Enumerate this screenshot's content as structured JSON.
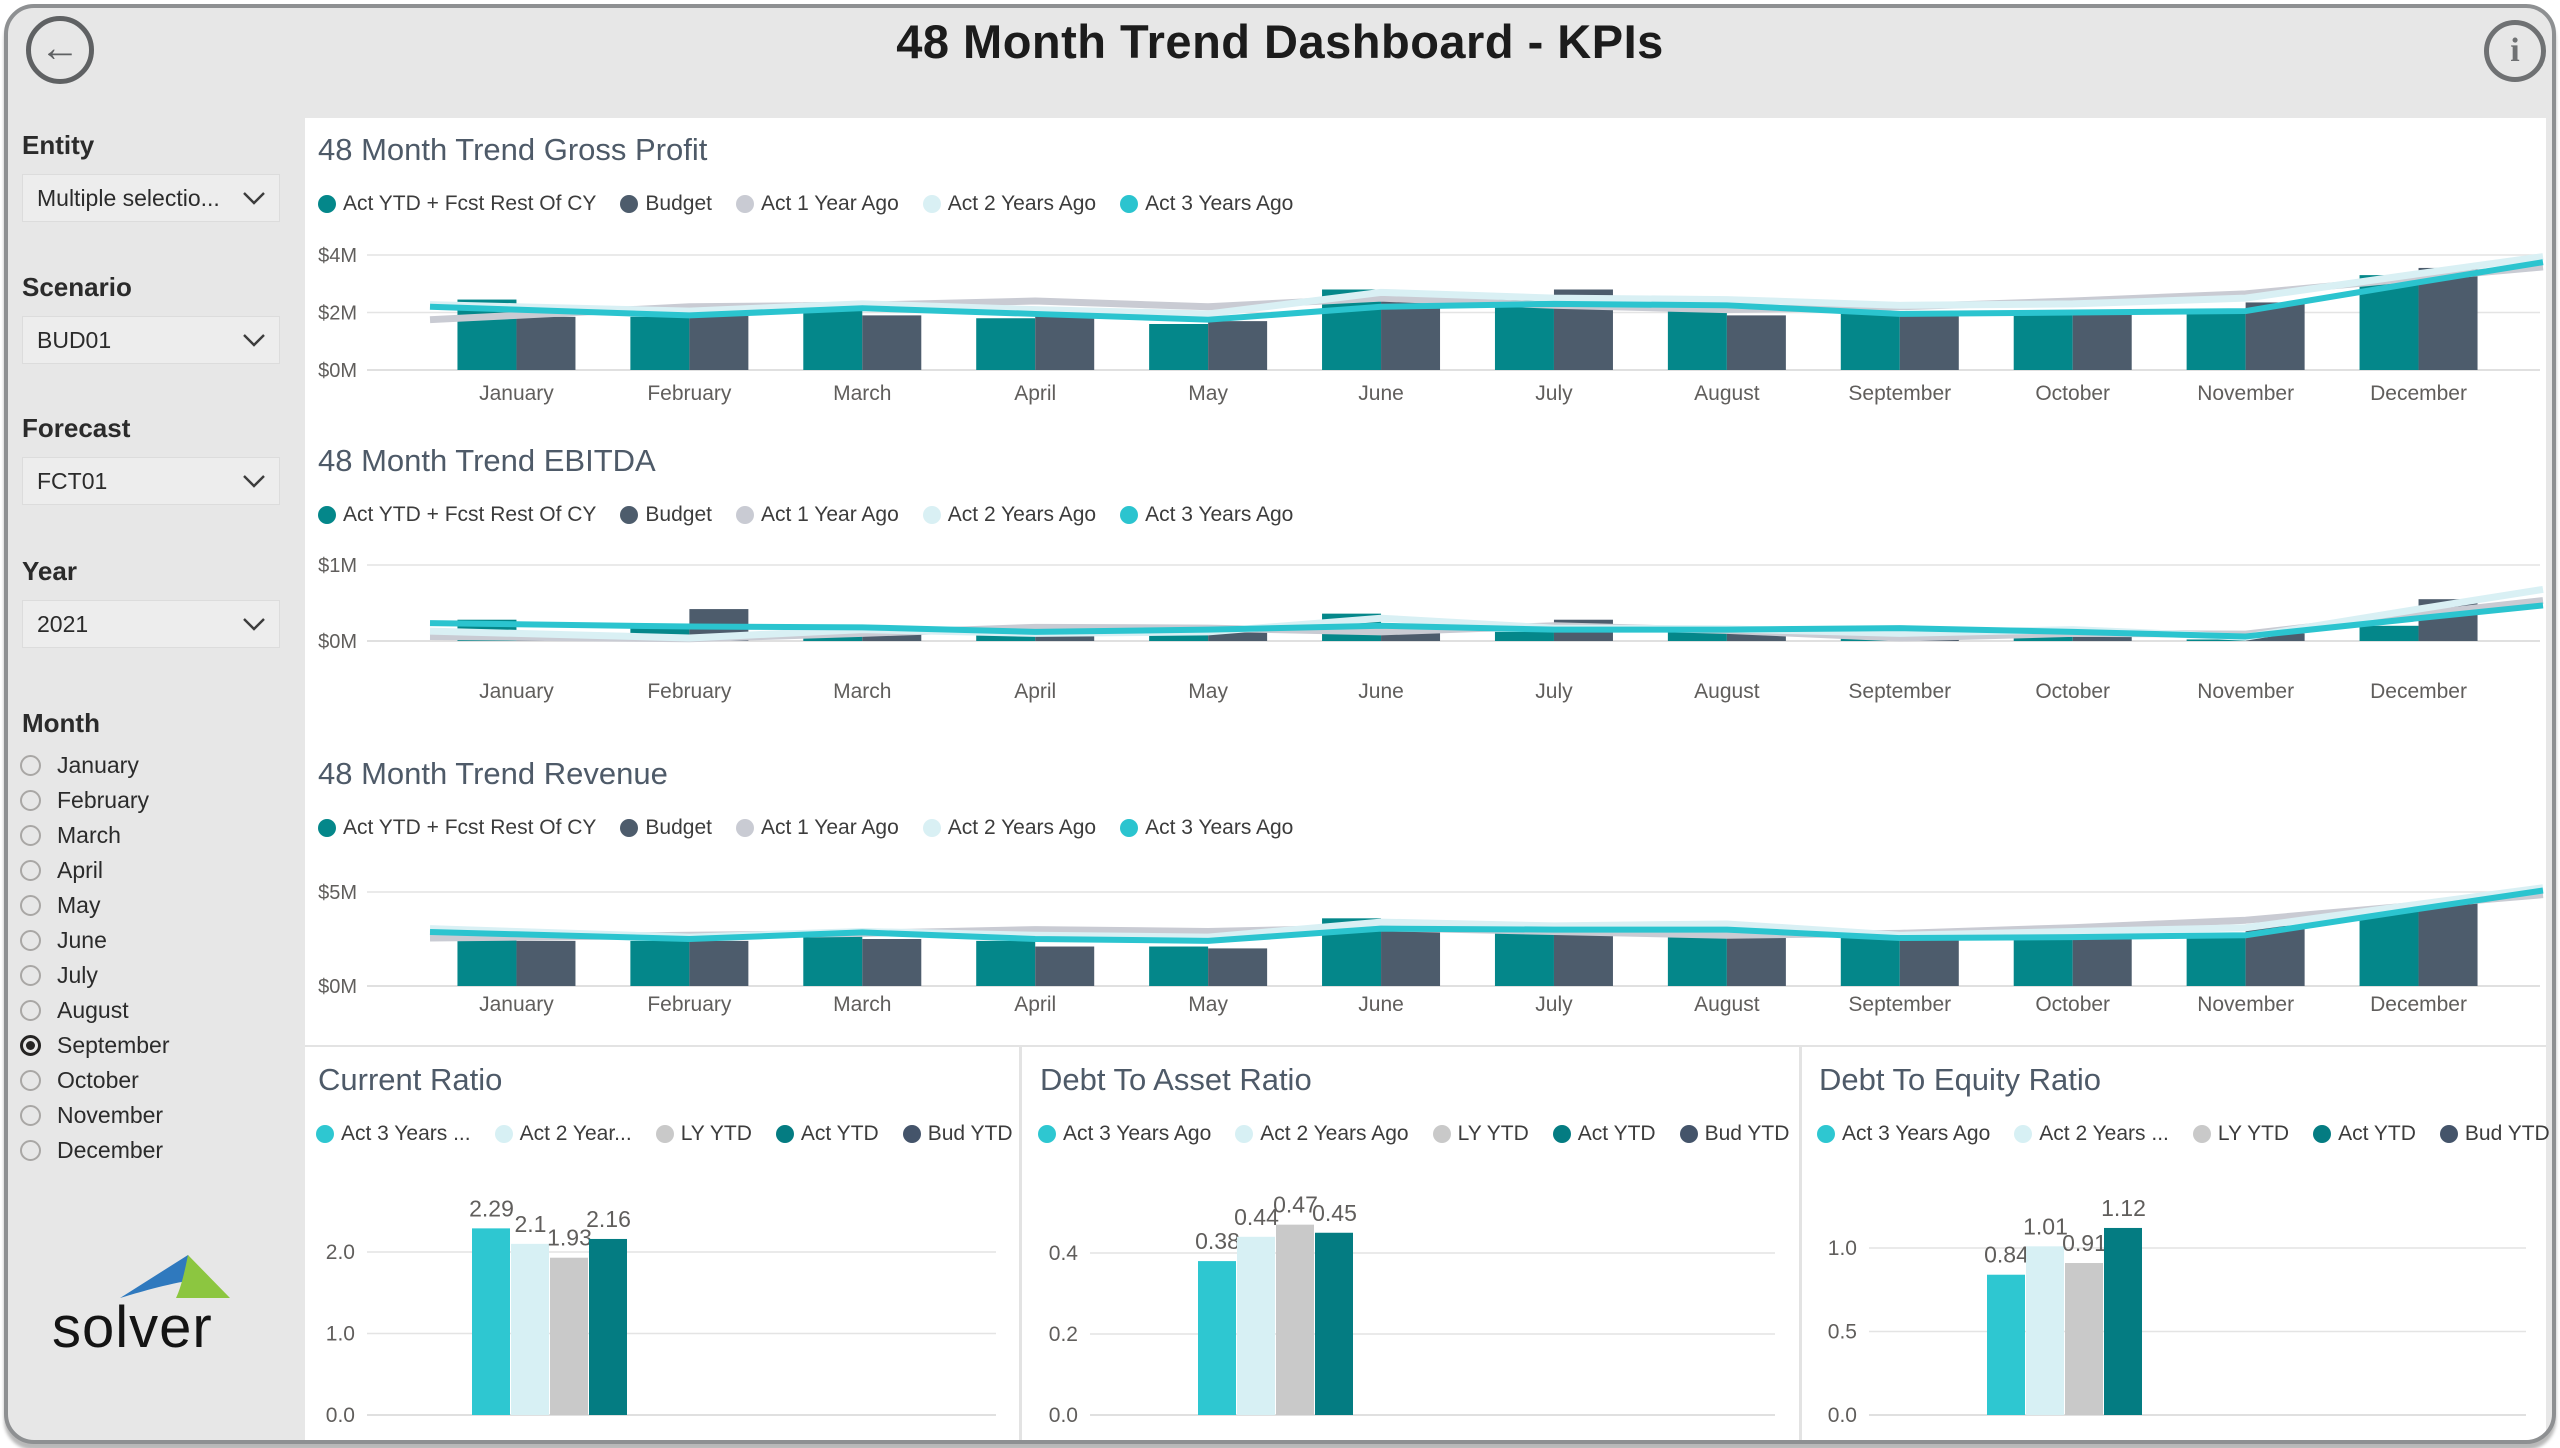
{
  "frame": {
    "title": "48 Month Trend Dashboard - KPIs",
    "back_icon": "←",
    "info_icon": "i"
  },
  "sidebar": {
    "filters": [
      {
        "label": "Entity",
        "value": "Multiple selectio..."
      },
      {
        "label": "Scenario",
        "value": "BUD01"
      },
      {
        "label": "Forecast",
        "value": "FCT01"
      },
      {
        "label": "Year",
        "value": "2021"
      }
    ],
    "month": {
      "label": "Month",
      "options": [
        "January",
        "February",
        "March",
        "April",
        "May",
        "June",
        "July",
        "August",
        "September",
        "October",
        "November",
        "December"
      ],
      "selected": "September"
    },
    "logo_text": "solver"
  },
  "colors": {
    "page_bg": "#E7E7E7",
    "frame_border": "#8E9092",
    "panel": "#FFFFFF",
    "divider": "#E3E3E3",
    "chart_title": "#4E5A68",
    "axis_text": "#605E5C",
    "teal_bar": "#04878A",
    "slate_bar": "#4D5C6C",
    "gray_line": "#C9CBD3",
    "pale_line": "#D9F0F4",
    "cyan_line": "#2BC4CF",
    "cyan_bar": "#2EC7D1",
    "pale_bar": "#D7F0F4",
    "ly_bar": "#C9C9C9",
    "actytd_bar": "#047C82",
    "bud_bar": "#44546A",
    "logo_blue": "#2F79BE",
    "logo_green": "#8CC640"
  },
  "chart_data": [
    {
      "type": "combo",
      "title": "48 Month Trend Gross Profit",
      "ylabel": "",
      "xlabel": "",
      "ylim": [
        0,
        4.5
      ],
      "yticks": [
        {
          "v": 0,
          "label": "$0M"
        },
        {
          "v": 2,
          "label": "$2M"
        },
        {
          "v": 4,
          "label": "$4M"
        }
      ],
      "categories": [
        "January",
        "February",
        "March",
        "April",
        "May",
        "June",
        "July",
        "August",
        "September",
        "October",
        "November",
        "December"
      ],
      "series": [
        {
          "name": "Act YTD + Fcst Rest Of CY",
          "kind": "bar",
          "color": "#04878A",
          "values": [
            2.45,
            1.85,
            2.35,
            1.8,
            1.6,
            2.8,
            2.5,
            2.2,
            2.0,
            2.05,
            2.05,
            3.3
          ]
        },
        {
          "name": "Budget",
          "kind": "bar",
          "color": "#4D5C6C",
          "values": [
            1.85,
            2.15,
            1.9,
            1.9,
            1.7,
            2.4,
            2.8,
            1.9,
            1.95,
            2.05,
            2.35,
            3.55
          ]
        },
        {
          "name": "Act 1 Year Ago",
          "kind": "line",
          "color": "#C9CBD3",
          "values": [
            1.9,
            2.2,
            2.25,
            2.4,
            2.2,
            2.5,
            2.25,
            2.1,
            2.2,
            2.4,
            2.65,
            3.2
          ]
        },
        {
          "name": "Act 2 Years Ago",
          "kind": "line",
          "color": "#D9F0F4",
          "values": [
            2.2,
            2.05,
            2.3,
            2.1,
            1.95,
            2.7,
            2.5,
            2.45,
            2.25,
            2.3,
            2.5,
            3.35
          ]
        },
        {
          "name": "Act 3 Years Ago",
          "kind": "line",
          "color": "#2BC4CF",
          "values": [
            2.1,
            1.9,
            2.15,
            1.95,
            1.75,
            2.2,
            2.3,
            2.25,
            1.95,
            2.0,
            2.05,
            3.05
          ]
        }
      ]
    },
    {
      "type": "combo",
      "title": "48 Month Trend EBITDA",
      "ylabel": "",
      "xlabel": "",
      "ylim": [
        0,
        1.2
      ],
      "yticks": [
        {
          "v": 0,
          "label": "$0M"
        },
        {
          "v": 1,
          "label": "$1M"
        }
      ],
      "categories": [
        "January",
        "February",
        "March",
        "April",
        "May",
        "June",
        "July",
        "August",
        "September",
        "October",
        "November",
        "December"
      ],
      "series": [
        {
          "name": "Act YTD + Fcst Rest Of CY",
          "kind": "bar",
          "color": "#04878A",
          "values": [
            0.28,
            0.2,
            0.1,
            0.1,
            0.08,
            0.36,
            0.12,
            0.12,
            0.15,
            0.07,
            0.02,
            0.2
          ]
        },
        {
          "name": "Budget",
          "kind": "bar",
          "color": "#4D5C6C",
          "values": [
            0.1,
            0.42,
            0.13,
            0.1,
            0.13,
            0.2,
            0.28,
            0.15,
            0.08,
            0.1,
            0.1,
            0.55
          ]
        },
        {
          "name": "Act 1 Year Ago",
          "kind": "line",
          "color": "#C9CBD3",
          "values": [
            0.05,
            0.03,
            0.1,
            0.18,
            0.17,
            0.12,
            0.2,
            0.14,
            0.04,
            0.1,
            0.09,
            0.35
          ]
        },
        {
          "name": "Act 2 Years Ago",
          "kind": "line",
          "color": "#D9F0F4",
          "values": [
            0.1,
            0.04,
            0.15,
            0.1,
            0.12,
            0.3,
            0.17,
            0.16,
            0.1,
            0.15,
            0.05,
            0.42
          ]
        },
        {
          "name": "Act 3 Years Ago",
          "kind": "line",
          "color": "#2BC4CF",
          "values": [
            0.22,
            0.19,
            0.18,
            0.12,
            0.15,
            0.2,
            0.15,
            0.15,
            0.17,
            0.12,
            0.06,
            0.3
          ]
        }
      ]
    },
    {
      "type": "combo",
      "title": "48 Month Trend Revenue",
      "ylabel": "",
      "xlabel": "",
      "ylim": [
        0,
        5.8
      ],
      "yticks": [
        {
          "v": 0,
          "label": "$0M"
        },
        {
          "v": 5,
          "label": "$5M"
        }
      ],
      "categories": [
        "January",
        "February",
        "March",
        "April",
        "May",
        "June",
        "July",
        "August",
        "September",
        "October",
        "November",
        "December"
      ],
      "series": [
        {
          "name": "Act YTD + Fcst Rest Of CY",
          "kind": "bar",
          "color": "#04878A",
          "values": [
            3.0,
            2.4,
            2.9,
            2.4,
            2.1,
            3.6,
            3.1,
            2.9,
            2.6,
            2.75,
            2.8,
            4.0
          ]
        },
        {
          "name": "Budget",
          "kind": "bar",
          "color": "#4D5C6C",
          "values": [
            2.4,
            2.4,
            2.5,
            2.1,
            2.0,
            3.0,
            3.3,
            2.6,
            2.5,
            2.7,
            3.2,
            4.4
          ]
        },
        {
          "name": "Act 1 Year Ago",
          "kind": "line",
          "color": "#C9CBD3",
          "values": [
            2.6,
            2.7,
            2.8,
            3.0,
            2.9,
            3.1,
            2.9,
            2.7,
            2.8,
            3.1,
            3.5,
            4.3
          ]
        },
        {
          "name": "Act 2 Years Ago",
          "kind": "line",
          "color": "#D9F0F4",
          "values": [
            2.9,
            2.6,
            2.9,
            2.7,
            2.6,
            3.4,
            3.2,
            3.3,
            2.7,
            2.9,
            3.1,
            4.35
          ]
        },
        {
          "name": "Act 3 Years Ago",
          "kind": "line",
          "color": "#2BC4CF",
          "values": [
            2.75,
            2.5,
            2.85,
            2.5,
            2.4,
            3.05,
            3.0,
            3.0,
            2.55,
            2.6,
            2.7,
            4.1
          ]
        }
      ]
    },
    {
      "type": "bar",
      "title": "Current Ratio",
      "ylim": [
        0,
        3.05
      ],
      "yticks": [
        {
          "v": 0,
          "label": "0.0"
        },
        {
          "v": 1,
          "label": "1.0"
        },
        {
          "v": 2,
          "label": "2.0"
        }
      ],
      "series": [
        {
          "name": "Act 3 Years ...",
          "color": "#2EC7D1",
          "value": 2.29,
          "value_label": "2.29"
        },
        {
          "name": "Act 2 Year...",
          "color": "#D7F0F4",
          "value": 2.1,
          "value_label": "2.1"
        },
        {
          "name": "LY YTD",
          "color": "#C9C9C9",
          "value": 1.93,
          "value_label": "1.93"
        },
        {
          "name": "Act YTD",
          "color": "#047C82",
          "value": 2.16,
          "value_label": "2.16"
        },
        {
          "name": "Bud YTD",
          "color": "#44546A",
          "value": null,
          "value_label": ""
        }
      ]
    },
    {
      "type": "bar",
      "title": "Debt To Asset Ratio",
      "ylim": [
        0,
        0.61
      ],
      "yticks": [
        {
          "v": 0,
          "label": "0.0"
        },
        {
          "v": 0.2,
          "label": "0.2"
        },
        {
          "v": 0.4,
          "label": "0.4"
        }
      ],
      "series": [
        {
          "name": "Act 3 Years Ago",
          "color": "#2EC7D1",
          "value": 0.38,
          "value_label": "0.38"
        },
        {
          "name": "Act 2 Years Ago",
          "color": "#D7F0F4",
          "value": 0.44,
          "value_label": "0.44"
        },
        {
          "name": "LY YTD",
          "color": "#C9C9C9",
          "value": 0.47,
          "value_label": "0.47"
        },
        {
          "name": "Act YTD",
          "color": "#047C82",
          "value": 0.45,
          "value_label": "0.45"
        },
        {
          "name": "Bud YTD",
          "color": "#44546A",
          "value": null,
          "value_label": ""
        }
      ]
    },
    {
      "type": "bar",
      "title": "Debt To Equity Ratio",
      "ylim": [
        0,
        1.5
      ],
      "yticks": [
        {
          "v": 0,
          "label": "0.0"
        },
        {
          "v": 0.5,
          "label": "0.5"
        },
        {
          "v": 1,
          "label": "1.0"
        }
      ],
      "series": [
        {
          "name": "Act 3 Years Ago",
          "color": "#2EC7D1",
          "value": 0.84,
          "value_label": "0.84"
        },
        {
          "name": "Act 2 Years ...",
          "color": "#D7F0F4",
          "value": 1.01,
          "value_label": "1.01"
        },
        {
          "name": "LY YTD",
          "color": "#C9C9C9",
          "value": 0.91,
          "value_label": "0.91"
        },
        {
          "name": "Act YTD",
          "color": "#047C82",
          "value": 1.12,
          "value_label": "1.12"
        },
        {
          "name": "Bud YTD",
          "color": "#44546A",
          "value": null,
          "value_label": ""
        }
      ]
    }
  ]
}
